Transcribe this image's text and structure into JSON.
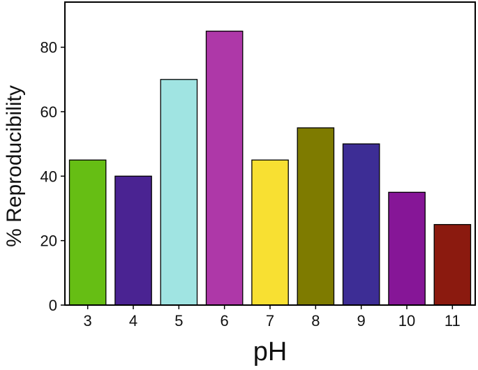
{
  "chart_data": {
    "type": "bar",
    "categories": [
      "3",
      "4",
      "5",
      "6",
      "7",
      "8",
      "9",
      "10",
      "11"
    ],
    "values": [
      45,
      40,
      70,
      85,
      45,
      55,
      50,
      35,
      25
    ],
    "colors": [
      "#66BE14",
      "#4A2392",
      "#A0E4E2",
      "#AE38A8",
      "#F8E032",
      "#7E7B00",
      "#3D2D95",
      "#861697",
      "#8B1A0F"
    ],
    "title": "",
    "xlabel": "pH",
    "ylabel": "% Reproducibility",
    "ylim": [
      0,
      94
    ],
    "yticks": [
      0,
      20,
      40,
      60,
      80
    ],
    "grid": false,
    "legend": "none"
  }
}
